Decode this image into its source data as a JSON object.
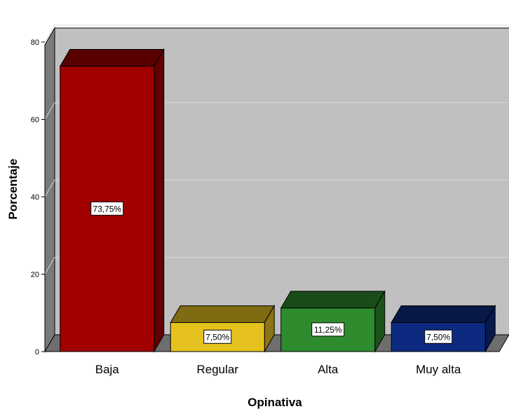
{
  "chart_data": {
    "type": "bar",
    "categories": [
      "Baja",
      "Regular",
      "Alta",
      "Muy alta"
    ],
    "values": [
      73.75,
      7.5,
      11.25,
      7.5
    ],
    "data_labels": [
      "73,75%",
      "7,50%",
      "11,25%",
      "7,50%"
    ],
    "colors": [
      "#a00000",
      "#e6c21f",
      "#2e8b2e",
      "#0c2a80"
    ],
    "xlabel": "Opinativa",
    "ylabel": "Porcentaje",
    "ylim": [
      0,
      80
    ],
    "yticks": [
      0,
      20,
      40,
      60,
      80
    ],
    "grid": true,
    "style": "3d",
    "backwall_color": "#c0c0c0",
    "floor_color": "#6e6e6e"
  }
}
